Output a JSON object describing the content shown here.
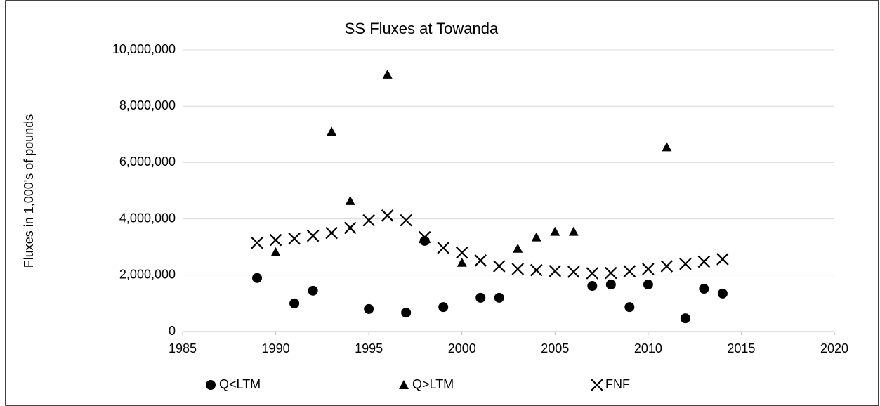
{
  "chart_data": {
    "type": "scatter",
    "title": "SS Fluxes at Towanda",
    "y_label": "Fluxes in 1,000's of pounds",
    "xlim": [
      1985,
      2020
    ],
    "xticks": [
      1985,
      1990,
      1995,
      2000,
      2005,
      2010,
      2015,
      2020
    ],
    "ylim": [
      0,
      10000000
    ],
    "yticks": [
      {
        "value": 0,
        "label": "0"
      },
      {
        "value": 2000000,
        "label": "2,000,000"
      },
      {
        "value": 4000000,
        "label": "4,000,000"
      },
      {
        "value": 6000000,
        "label": "6,000,000"
      },
      {
        "value": 8000000,
        "label": "8,000,000"
      },
      {
        "value": 10000000,
        "label": "10,000,000"
      }
    ],
    "grid": true,
    "legend": "bottom",
    "series": [
      {
        "name": "Q<LTM",
        "color": "#000000",
        "marker": "circle",
        "x": [
          1989,
          1991,
          1992,
          1995,
          1997,
          1998,
          1999,
          2001,
          2002,
          2007,
          2008,
          2009,
          2010,
          2012,
          2013,
          2014
        ],
        "values": [
          1900000,
          1000000,
          1450000,
          800000,
          670000,
          3220000,
          870000,
          1200000,
          1200000,
          1620000,
          1670000,
          870000,
          1670000,
          470000,
          1520000,
          1350000
        ]
      },
      {
        "name": "Q>LTM",
        "color": "#000000",
        "marker": "triangle",
        "x": [
          1990,
          1993,
          1994,
          1996,
          2000,
          2003,
          2004,
          2005,
          2006,
          2011
        ],
        "values": [
          2820000,
          7100000,
          4640000,
          9130000,
          2450000,
          2950000,
          3350000,
          3550000,
          3550000,
          6550000
        ]
      },
      {
        "name": "FNF",
        "color": "#000000",
        "marker": "x",
        "x": [
          1989,
          1990,
          1991,
          1992,
          1993,
          1994,
          1995,
          1996,
          1997,
          1998,
          1999,
          2000,
          2001,
          2002,
          2003,
          2004,
          2005,
          2006,
          2007,
          2008,
          2009,
          2010,
          2011,
          2012,
          2013,
          2014
        ],
        "values": [
          3150000,
          3250000,
          3300000,
          3400000,
          3500000,
          3680000,
          3950000,
          4120000,
          3950000,
          3350000,
          2970000,
          2800000,
          2520000,
          2320000,
          2220000,
          2180000,
          2150000,
          2120000,
          2070000,
          2080000,
          2140000,
          2220000,
          2320000,
          2400000,
          2480000,
          2570000
        ]
      }
    ]
  }
}
